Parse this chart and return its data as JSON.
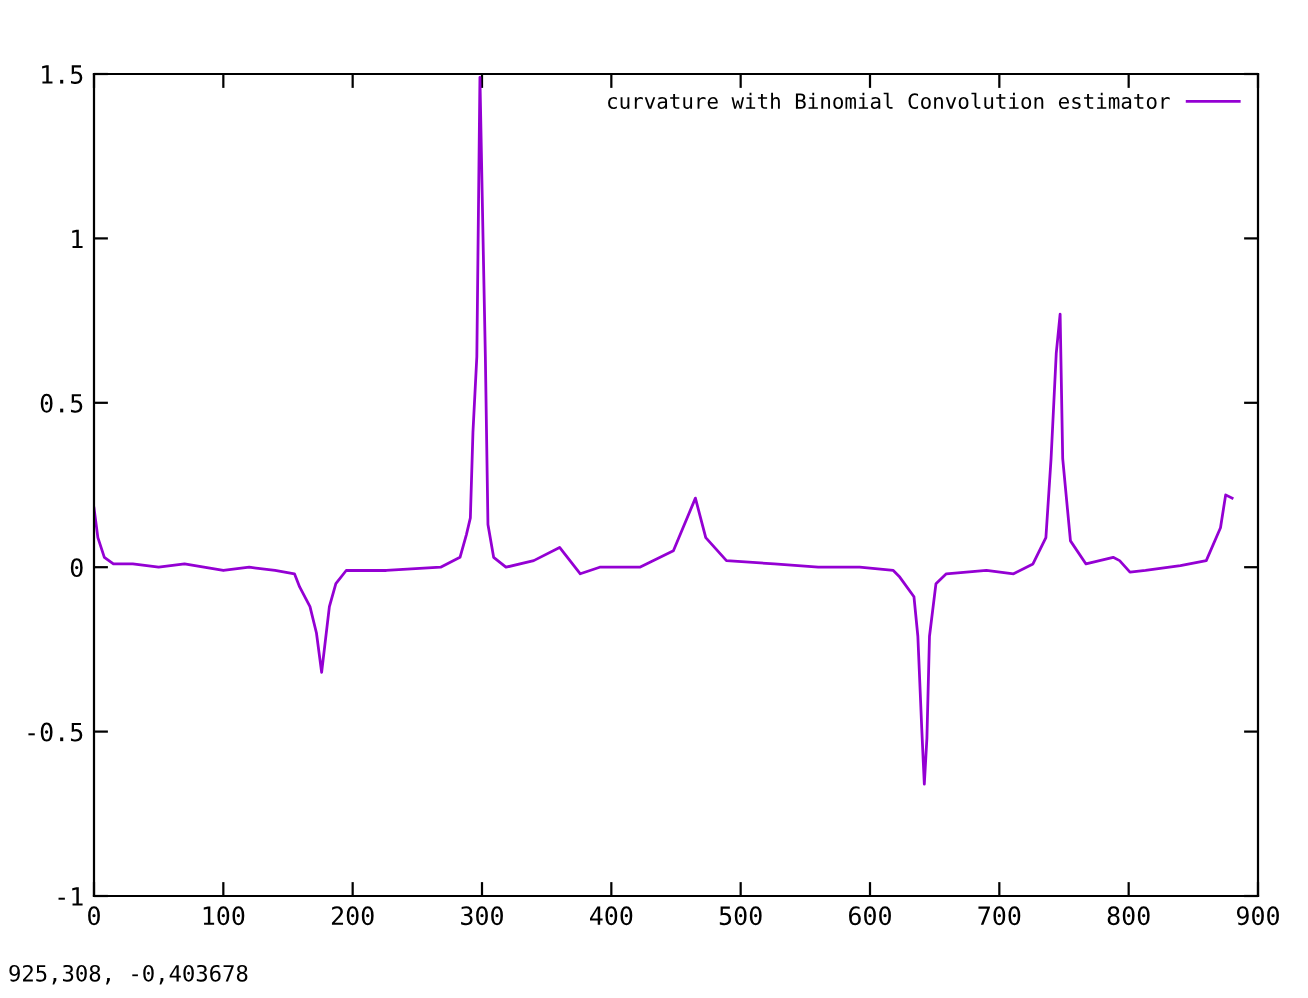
{
  "chart_data": {
    "type": "line",
    "x": [
      0,
      3,
      8,
      15,
      30,
      50,
      70,
      85,
      100,
      120,
      140,
      155,
      159,
      167,
      172,
      176,
      182,
      187,
      195,
      226,
      268,
      283,
      288,
      291,
      293,
      296,
      298,
      298.4,
      301,
      302.6,
      304.6,
      309,
      318.5,
      340,
      360,
      376,
      391,
      422,
      448,
      465,
      473,
      489,
      526,
      560,
      592,
      618,
      623,
      634,
      637,
      640,
      642,
      644,
      646,
      651,
      659,
      690,
      711,
      726,
      736,
      740,
      744,
      747,
      749,
      755,
      767,
      788,
      793,
      801,
      813,
      840,
      860,
      871,
      875,
      880
    ],
    "series": [
      {
        "name": "curvature with Binomial Convolution estimator",
        "color": "#9400d3",
        "values": [
          0.18,
          0.09,
          0.03,
          0.01,
          0.01,
          0.0,
          0.01,
          0.0,
          -0.01,
          0.0,
          -0.01,
          -0.02,
          -0.06,
          -0.12,
          -0.2,
          -0.32,
          -0.12,
          -0.05,
          -0.01,
          -0.01,
          0.0,
          0.03,
          0.1,
          0.15,
          0.41,
          0.64,
          1.35,
          1.49,
          0.96,
          0.64,
          0.13,
          0.03,
          0.0,
          0.02,
          0.06,
          -0.02,
          0.0,
          0.0,
          0.05,
          0.21,
          0.09,
          0.02,
          0.01,
          0.0,
          0.0,
          -0.01,
          -0.03,
          -0.09,
          -0.21,
          -0.49,
          -0.66,
          -0.52,
          -0.21,
          -0.05,
          -0.02,
          -0.01,
          -0.02,
          0.01,
          0.09,
          0.33,
          0.65,
          0.77,
          0.33,
          0.08,
          0.01,
          0.03,
          0.02,
          -0.015,
          -0.01,
          0.005,
          0.02,
          0.12,
          0.22,
          0.21
        ]
      }
    ],
    "xlim": [
      0,
      900
    ],
    "xticks": [
      0,
      100,
      200,
      300,
      400,
      500,
      600,
      700,
      800,
      900
    ],
    "ylim": [
      -1,
      1.5
    ],
    "yticks": [
      -1,
      -0.5,
      0,
      0.5,
      1,
      1.5
    ],
    "legend": "top right",
    "grid": false,
    "annotations": [
      "925,308, -0,403678"
    ]
  }
}
